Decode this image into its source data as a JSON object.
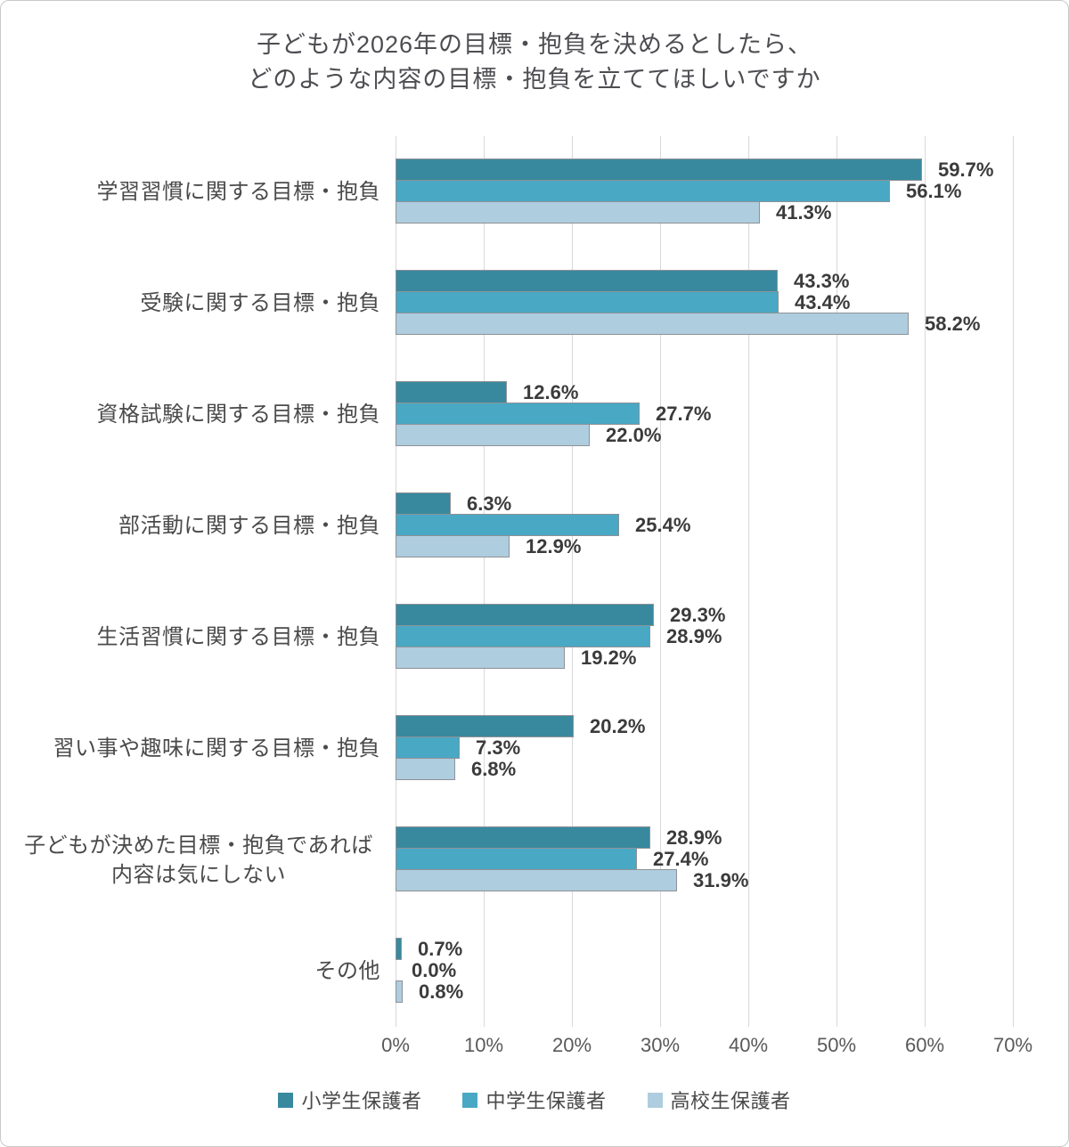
{
  "chart_data": {
    "type": "bar",
    "orientation": "horizontal",
    "title_lines": [
      "子どもが2026年の目標・抱負を決めるとしたら、",
      "どのような内容の目標・抱負を立ててほしいですか"
    ],
    "categories": [
      {
        "label_lines": [
          "学習習慣に関する目標・抱負"
        ]
      },
      {
        "label_lines": [
          "受験に関する目標・抱負"
        ]
      },
      {
        "label_lines": [
          "資格試験に関する目標・抱負"
        ]
      },
      {
        "label_lines": [
          "部活動に関する目標・抱負"
        ]
      },
      {
        "label_lines": [
          "生活習慣に関する目標・抱負"
        ]
      },
      {
        "label_lines": [
          "習い事や趣味に関する目標・抱負"
        ]
      },
      {
        "label_lines": [
          "子どもが決めた目標・抱負であれば",
          "内容は気にしない"
        ]
      },
      {
        "label_lines": [
          "その他"
        ]
      }
    ],
    "series": [
      {
        "name": "小学生保護者",
        "color": "#38899e",
        "values": [
          59.7,
          43.3,
          12.6,
          6.3,
          29.3,
          20.2,
          28.9,
          0.7
        ]
      },
      {
        "name": "中学生保護者",
        "color": "#49a8c4",
        "values": [
          56.1,
          43.4,
          27.7,
          25.4,
          28.9,
          7.3,
          27.4,
          0.0
        ]
      },
      {
        "name": "高校生保護者",
        "color": "#aecdde",
        "values": [
          41.3,
          58.2,
          22.0,
          12.9,
          19.2,
          6.8,
          31.9,
          0.8
        ]
      }
    ],
    "x_axis": {
      "min": 0,
      "max": 70,
      "step": 10,
      "tick_labels": [
        "0%",
        "10%",
        "20%",
        "30%",
        "40%",
        "50%",
        "60%",
        "70%"
      ]
    },
    "value_suffix": "%",
    "grid": true,
    "legend_position": "bottom",
    "colors": {
      "bar_border": "#8e9297",
      "gridline": "#d8d8dd",
      "title_text": "#4d4d52",
      "category_text": "#4a4a4a",
      "value_text": "#3b3b3b",
      "tick_text": "#595959"
    }
  }
}
